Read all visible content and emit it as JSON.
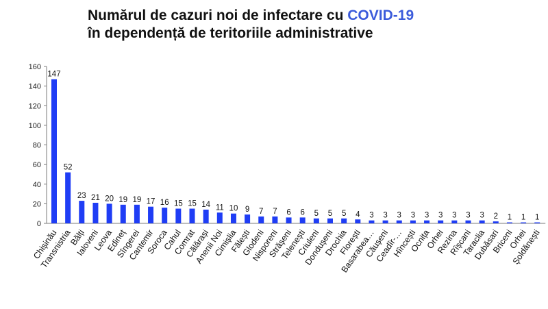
{
  "title": {
    "line1_text": "Numărul de cazuri noi de infectare cu ",
    "line1_accent": "COVID-19",
    "line2": "în dependență de teritoriile administrative"
  },
  "colors": {
    "bar": "#1f3df5",
    "accent": "#3b5bdb"
  },
  "chart_data": {
    "type": "bar",
    "title": "Numărul de cazuri noi de infectare cu COVID-19 în dependență de teritoriile administrative",
    "ylabel": "",
    "xlabel": "",
    "ylim": [
      0,
      160
    ],
    "yticks": [
      0,
      20,
      40,
      60,
      80,
      100,
      120,
      140,
      160
    ],
    "grid": false,
    "categories": [
      "Chișinău",
      "Transnistria",
      "Bălți",
      "Ialoveni",
      "Leova",
      "Edineț",
      "Sîngerei",
      "Cantemir",
      "Soroca",
      "Cahul",
      "Comrat",
      "Călărași",
      "Anenii Noi",
      "Cimișlia",
      "Fălești",
      "Glodeni",
      "Nisporeni",
      "Strășeni",
      "Telenești",
      "Criuleni",
      "Dondușeni",
      "Drochia",
      "Florești",
      "Basarabea…",
      "Căușeni",
      "Ceadîr-…",
      "Hîncești",
      "Ocnița",
      "Orhei",
      "Rezina",
      "Rîșcani",
      "Taraclia",
      "Dubăsari",
      "Briceni",
      "Orhei",
      "Șoldănești"
    ],
    "values": [
      147,
      52,
      23,
      21,
      20,
      19,
      19,
      17,
      16,
      15,
      15,
      14,
      11,
      10,
      9,
      7,
      7,
      6,
      6,
      5,
      5,
      5,
      4,
      3,
      3,
      3,
      3,
      3,
      3,
      3,
      3,
      3,
      2,
      1,
      1,
      1
    ],
    "value_labels": [
      "147",
      "52",
      "23",
      "21",
      "20",
      "19",
      "19",
      "17",
      "16",
      "15",
      "15",
      "14",
      "11",
      "10",
      "9",
      "7",
      "7",
      "6",
      "6",
      "5",
      "5",
      "5",
      "4",
      "3",
      "3",
      "3",
      "3",
      "3",
      "3",
      "3",
      "3",
      "3",
      "2",
      "1",
      "1",
      "1"
    ]
  }
}
